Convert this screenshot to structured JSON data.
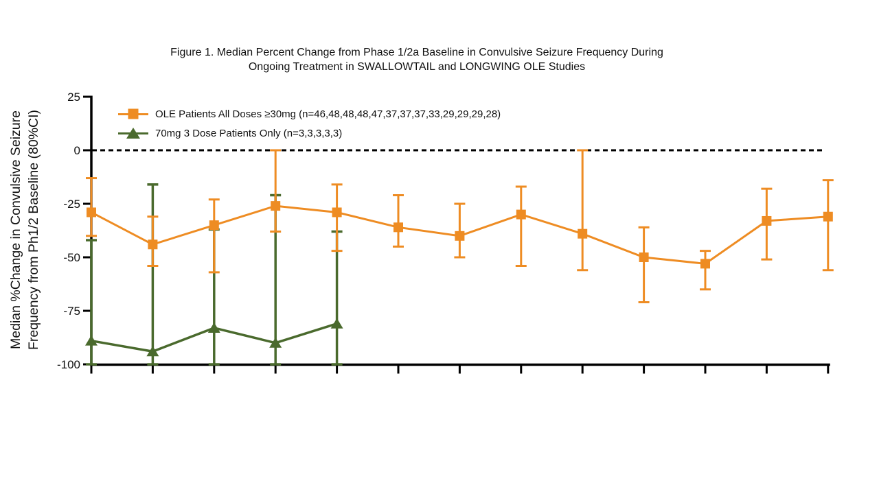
{
  "title": {
    "line1": "Figure 1. Median Percent Change from Phase 1/2a Baseline in Convulsive Seizure Frequency During",
    "line2": "Ongoing Treatment in SWALLOWTAIL and LONGWING OLE Studies"
  },
  "y_axis_label": {
    "line1": "Median %Change in Convulsive Seizure",
    "line2": "Frequency from Ph1/2 Baseline (80%CI)"
  },
  "legend": [
    {
      "marker": "orange-square-marker",
      "label": "OLE Patients All Doses ≥30mg (n=46,48,48,48,47,37,37,37,33,29,29,29,28)"
    },
    {
      "marker": "green-triangle-marker",
      "label": "70mg 3 Dose Patients Only (n=3,3,3,3,3)"
    }
  ],
  "colors": {
    "orange": "#EE8C23",
    "green": "#4A6A2D",
    "axis": "#000000",
    "background": "#ffffff"
  },
  "chart_data": {
    "type": "line",
    "title": "Figure 1. Median Percent Change from Phase 1/2a Baseline in Convulsive Seizure Frequency During Ongoing Treatment in SWALLOWTAIL and LONGWING OLE Studies",
    "ylabel": "Median %Change in Convulsive Seizure Frequency from Ph1/2 Baseline (80%CI)",
    "xlabel": "",
    "ylim": [
      -100,
      25
    ],
    "yticks": [
      25,
      0,
      -25,
      -50,
      -75,
      -100
    ],
    "x_count": 13,
    "x_tick_labels_visible": false,
    "grid": false,
    "zero_reference_line": {
      "value": 0,
      "style": "dashed",
      "color": "#000000"
    },
    "error_bar_type": "80% CI",
    "legend_position": "top-left-inside",
    "series": [
      {
        "name": "OLE Patients All Doses ≥30mg (n=46,48,48,48,47,37,37,37,33,29,29,29,28)",
        "color": "#EE8C23",
        "marker": "square",
        "values": [
          -29,
          -44,
          -35,
          -26,
          -29,
          -36,
          -40,
          -30,
          -39,
          -50,
          -53,
          -33,
          -31
        ],
        "ci_upper": [
          -13,
          -31,
          -23,
          0,
          -16,
          -21,
          -25,
          -17,
          0,
          -36,
          -47,
          -18,
          -14
        ],
        "ci_lower": [
          -40,
          -54,
          -57,
          -38,
          -47,
          -45,
          -50,
          -54,
          -56,
          -71,
          -65,
          -51,
          -56
        ]
      },
      {
        "name": "70mg 3 Dose Patients Only (n=3,3,3,3,3)",
        "color": "#4A6A2D",
        "marker": "triangle",
        "values": [
          -89,
          -94,
          -83,
          -90,
          -81
        ],
        "ci_upper": [
          -42,
          -16,
          -37,
          -21,
          -38
        ],
        "ci_lower": [
          -100,
          -100,
          -100,
          -100,
          -100
        ]
      }
    ]
  }
}
